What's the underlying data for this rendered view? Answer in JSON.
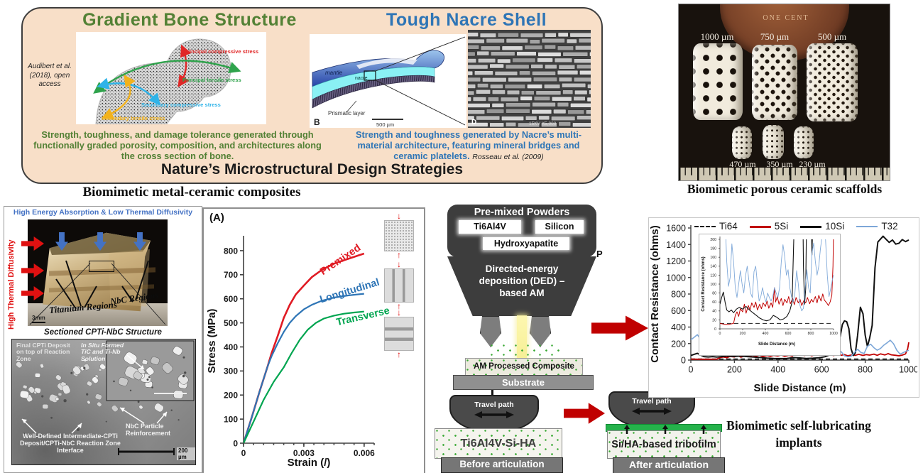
{
  "nature_panel": {
    "title": "Nature’s Microstructural Design Strategies",
    "bone": {
      "title": "Gradient Bone Structure",
      "citation": "Audibert et al. (2018), open access",
      "labels": {
        "principal_compressive": "Principal compressive stress",
        "principal_tensile": "Principal tensile stress",
        "secondary_compressive": "Secondary compressive stress",
        "secondary_tensile": "Secondary tensile stress"
      },
      "caption": "Strength, toughness, and damage tolerance generated through functionally graded porosity, composition, and architectures along the cross section of bone."
    },
    "nacre": {
      "title": "Tough Nacre Shell",
      "labels": {
        "mantle": "mantle",
        "nacre": "nacre",
        "prismatic": "Prismatic layer",
        "panel_b": "B",
        "scale": "500 µm",
        "panel_d": "D",
        "sem_meta": "15KV  X5,000"
      },
      "caption": "Strength and toughness generated by Nacre’s multi-material architecture, featuring mineral bridges and ceramic platelets.",
      "citation": "Rosseau et al. (2009)"
    },
    "colors": {
      "bone_green": "#538135",
      "nacre_blue": "#2e75b6",
      "panel_bg": "#f8dfc8"
    }
  },
  "scaffolds": {
    "caption": "Biomimetic porous ceramic scaffolds",
    "penny_text": "ONE CENT",
    "sizes_top": [
      "1000 µm",
      "750 µm",
      "500 µm"
    ],
    "sizes_bottom": [
      "470 µm",
      "350 µm",
      "230 µm"
    ]
  },
  "composites": {
    "heading": "Biomimetic metal-ceramic composites",
    "photo": {
      "top_label": "High Energy Absorption & Low Thermal Diffusivity",
      "left_label": "High Thermal Diffusivity",
      "titanium": "Titanium Regions",
      "nbc": "NbC Regions",
      "scale": "3mm"
    },
    "section_label": "Sectioned CPTi-NbC Structure",
    "sem": {
      "final_cpti": "Final CPTi Deposit on top of Reaction Zone",
      "in_situ": "In Situ Formed TiC and Ti-Nb Solution",
      "nbc_particle": "NbC Particle Reinforcement",
      "interface": "Well-Defined Intermediate-CPTi Deposit/CPTi-NbC Reaction Zone Interface",
      "scale": "200 µm"
    }
  },
  "ded": {
    "hopper_title": "Pre-mixed Powders",
    "powders": [
      "Ti6Al4V",
      "Silicon",
      "Hydroxyapatite"
    ],
    "body_label": "Directed-energy deposition (DED) – based AM",
    "p_label": "P",
    "composite_label": "AM Processed Composite",
    "substrate_label": "Substrate",
    "before": {
      "pin": "Travel path",
      "sample": "Ti6Al4V-Si-HA",
      "bar": "Before articulation"
    },
    "after": {
      "pin": "Travel path",
      "film": "Si/HA-based tribofilm",
      "bar": "After articulation"
    }
  },
  "implants_caption": "Biomimetic self-lubricating implants",
  "chart_data": [
    {
      "id": "stress_strain",
      "type": "line",
      "title": "(A)",
      "xlabel": "Strain (/)",
      "ylabel": "Stress (MPa)",
      "xlim": [
        0,
        0.0065
      ],
      "ylim": [
        0,
        850
      ],
      "xticks": [
        0,
        0.003,
        0.006
      ],
      "xtick_labels": [
        "0",
        "0.003",
        "0.006"
      ],
      "yticks": [
        0,
        100,
        200,
        300,
        400,
        500,
        600,
        700,
        800
      ],
      "ytick_labels": [
        "0",
        "100",
        "200",
        "300",
        "400",
        "500",
        "600",
        "700",
        "800"
      ],
      "grid": false,
      "legend_position": "curve-labels",
      "series": [
        {
          "name": "Premixed",
          "color": "#e01b24",
          "width": 2.6,
          "x": [
            0,
            0.0004,
            0.0008,
            0.0012,
            0.0014,
            0.0017,
            0.002,
            0.0023,
            0.0026,
            0.003,
            0.0034,
            0.0039,
            0.0045,
            0.0052,
            0.006
          ],
          "y": [
            0,
            105,
            215,
            320,
            375,
            445,
            520,
            575,
            618,
            655,
            690,
            720,
            746,
            766,
            788
          ]
        },
        {
          "name": "Longitudinal",
          "color": "#2e75b6",
          "width": 2.2,
          "x": [
            0,
            0.0004,
            0.0008,
            0.0012,
            0.0014,
            0.0017,
            0.002,
            0.0023,
            0.0026,
            0.003,
            0.0034,
            0.0039,
            0.0045,
            0.0052,
            0.006
          ],
          "y": [
            0,
            105,
            215,
            320,
            362,
            415,
            462,
            500,
            528,
            556,
            575,
            592,
            605,
            614,
            621
          ]
        },
        {
          "name": "Transverse",
          "color": "#00a550",
          "width": 2.2,
          "x": [
            0,
            0.0005,
            0.001,
            0.0015,
            0.002,
            0.0024,
            0.0028,
            0.0032,
            0.0036,
            0.004,
            0.0045,
            0.005,
            0.0055,
            0.006
          ],
          "y": [
            0,
            90,
            180,
            255,
            315,
            375,
            430,
            472,
            500,
            518,
            530,
            538,
            543,
            547
          ]
        }
      ]
    },
    {
      "id": "contact_resistance",
      "type": "line",
      "xlabel": "Slide Distance (m)",
      "ylabel": "Contact Resistance (ohms)",
      "xlim": [
        0,
        1000
      ],
      "ylim": [
        0,
        1600
      ],
      "xticks": [
        0,
        200,
        400,
        600,
        800,
        1000
      ],
      "xtick_labels": [
        "0",
        "200",
        "400",
        "600",
        "800",
        "1000"
      ],
      "yticks": [
        0,
        200,
        400,
        600,
        800,
        1000,
        1200,
        1400,
        1600
      ],
      "ytick_labels": [
        "0",
        "200",
        "400",
        "600",
        "800",
        "1000",
        "1200",
        "1400",
        "1600"
      ],
      "grid": false,
      "legend_position": "top",
      "series": [
        {
          "name": "Ti64",
          "color": "#1a1a1a",
          "width": 1.8,
          "dash": "6 4",
          "x": [
            0,
            1000
          ],
          "y": [
            12,
            12
          ]
        },
        {
          "name": "5Si",
          "color": "#c00000",
          "width": 1.8,
          "x": [
            0,
            40,
            80,
            120,
            135,
            150,
            165,
            180,
            200,
            215,
            230,
            250,
            265,
            280,
            300,
            315,
            330,
            350,
            365,
            380,
            400,
            415,
            430,
            450,
            465,
            480,
            490,
            505,
            520,
            540,
            555,
            570,
            590,
            605,
            620,
            640,
            655,
            670,
            690,
            705,
            720,
            740,
            755,
            770,
            790,
            805,
            820,
            840,
            855,
            870,
            890,
            905,
            920,
            940,
            955,
            970,
            985,
            995,
            1000
          ],
          "y": [
            12,
            10,
            10,
            12,
            30,
            38,
            28,
            45,
            38,
            55,
            35,
            52,
            42,
            58,
            48,
            60,
            42,
            55,
            45,
            58,
            50,
            62,
            46,
            58,
            48,
            92,
            60,
            72,
            55,
            68,
            52,
            66,
            58,
            72,
            56,
            68,
            54,
            70,
            58,
            66,
            52,
            64,
            58,
            70,
            56,
            66,
            60,
            72,
            58,
            75,
            62,
            78,
            64,
            58,
            52,
            60,
            75,
            140,
            215
          ]
        },
        {
          "name": "10Si",
          "color": "#111111",
          "width": 2,
          "x": [
            0,
            15,
            30,
            45,
            60,
            80,
            100,
            120,
            145,
            170,
            200,
            230,
            260,
            290,
            320,
            350,
            380,
            410,
            440,
            470,
            500,
            530,
            560,
            590,
            615,
            635,
            650,
            662,
            672,
            685,
            695,
            705,
            715,
            725,
            735,
            745,
            755,
            765,
            778,
            790,
            800,
            810,
            820,
            832,
            845,
            858,
            870,
            882,
            895,
            910,
            925,
            940,
            955,
            970,
            985,
            1000
          ],
          "y": [
            55,
            70,
            82,
            60,
            42,
            38,
            42,
            36,
            44,
            48,
            44,
            50,
            42,
            36,
            30,
            24,
            20,
            18,
            20,
            30,
            26,
            20,
            22,
            28,
            40,
            60,
            200,
            420,
            330,
            285,
            430,
            475,
            465,
            380,
            140,
            55,
            90,
            300,
            640,
            560,
            300,
            165,
            260,
            420,
            1120,
            1430,
            1465,
            1500,
            1465,
            1425,
            1455,
            1405,
            1415,
            1460,
            1435,
            1455
          ]
        },
        {
          "name": "T32",
          "color": "#7da7d8",
          "width": 1.6,
          "x": [
            0,
            15,
            30,
            45,
            60,
            75,
            90,
            105,
            120,
            135,
            150,
            165,
            180,
            195,
            210,
            225,
            240,
            255,
            270,
            285,
            300,
            315,
            330,
            345,
            360,
            375,
            390,
            405,
            420,
            435,
            450,
            465,
            480,
            495,
            510,
            525,
            540,
            555,
            570,
            585,
            600,
            615,
            630,
            645,
            660,
            675,
            690,
            705,
            720,
            735,
            750,
            765,
            780,
            795,
            810,
            825,
            840,
            855,
            870,
            885,
            900,
            915,
            930,
            945,
            960,
            975,
            990,
            1000
          ],
          "y": [
            245,
            275,
            308,
            250,
            150,
            95,
            115,
            190,
            150,
            92,
            70,
            100,
            130,
            100,
            80,
            118,
            140,
            108,
            80,
            70,
            128,
            140,
            100,
            62,
            72,
            92,
            72,
            60,
            80,
            70,
            62,
            72,
            92,
            80,
            70,
            92,
            150,
            188,
            162,
            120,
            132,
            92,
            72,
            60,
            80,
            130,
            100,
            52,
            40,
            46,
            90,
            132,
            92,
            80,
            168,
            192,
            150,
            120,
            140,
            180,
            208,
            240,
            198,
            120,
            72,
            90,
            110,
            120
          ]
        }
      ]
    },
    {
      "id": "contact_resistance_inset",
      "type": "line",
      "xlabel": "Slide Distance (m)",
      "ylabel": "Contact Resistance (ohms)",
      "xlim": [
        0,
        1000
      ],
      "ylim": [
        0,
        200
      ],
      "xticks": [
        0,
        200,
        400,
        600,
        800,
        1000
      ],
      "xtick_labels": [
        "0",
        "200",
        "400",
        "600",
        "800",
        "1000"
      ],
      "yticks": [
        0,
        20,
        40,
        60,
        80,
        100,
        120,
        140,
        160,
        180,
        200
      ],
      "ytick_labels": [
        "0",
        "20",
        "40",
        "60",
        "80",
        "100",
        "120",
        "140",
        "160",
        "180",
        "200"
      ],
      "grid": false,
      "series_ref": 1,
      "note": "zoomed view of same four series clipped to 0-200 ohms"
    }
  ]
}
